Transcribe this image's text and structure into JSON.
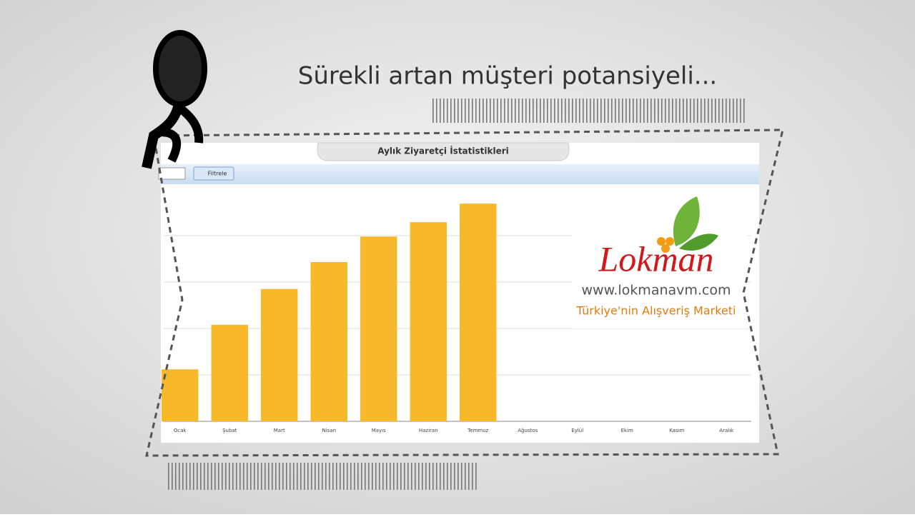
{
  "headline": "Sürekli artan müşteri potansiyeli...",
  "toolbar": {
    "button": "Filtrele"
  },
  "logo": {
    "brand": "Lokman",
    "url": "www.lokmanavm.com",
    "slogan": "Türkiye'nin Alışveriş Marketi"
  },
  "chart_data": {
    "type": "bar",
    "title": "Aylık Ziyaretçi İstatistikleri",
    "categories": [
      "Ocak",
      "Şubat",
      "Mart",
      "Nisan",
      "Mayıs",
      "Haziran",
      "Temmuz",
      "Ağustos",
      "Eylül",
      "Ekim",
      "Kasım",
      "Aralık"
    ],
    "values": [
      1.12,
      2.08,
      2.85,
      3.43,
      3.98,
      4.29,
      4.69,
      null,
      null,
      null,
      null,
      null
    ],
    "color": "#f7b82a",
    "ylim": [
      0,
      5
    ],
    "gridlines": [
      1,
      2,
      3,
      4
    ],
    "grid": true
  }
}
